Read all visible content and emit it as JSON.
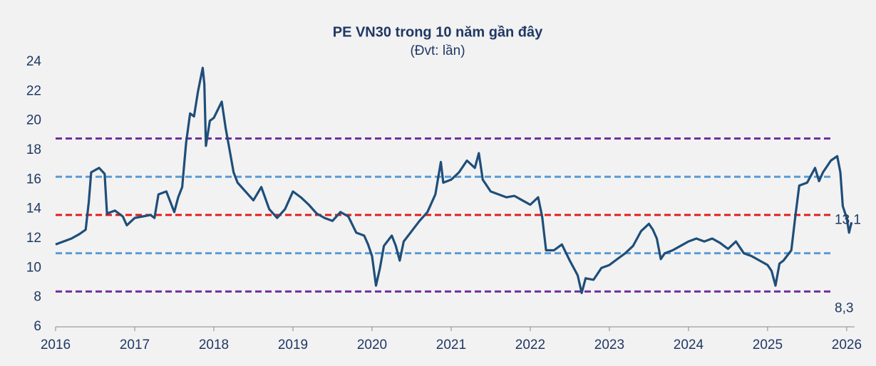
{
  "chart_data": {
    "type": "line",
    "title": "PE VN30 trong 10 năm gần đây",
    "subtitle": "(Đvt: lần)",
    "color": "#1f4e79",
    "x": [
      2016.0,
      2016.1,
      2016.2,
      2016.3,
      2016.38,
      2016.42,
      2016.45,
      2016.55,
      2016.62,
      2016.65,
      2016.75,
      2016.85,
      2016.9,
      2017.0,
      2017.1,
      2017.2,
      2017.25,
      2017.3,
      2017.4,
      2017.5,
      2017.55,
      2017.6,
      2017.65,
      2017.7,
      2017.75,
      2017.8,
      2017.86,
      2017.88,
      2017.9,
      2017.95,
      2018.0,
      2018.1,
      2018.15,
      2018.2,
      2018.25,
      2018.3,
      2018.4,
      2018.5,
      2018.6,
      2018.7,
      2018.8,
      2018.9,
      2019.0,
      2019.1,
      2019.2,
      2019.3,
      2019.4,
      2019.5,
      2019.6,
      2019.7,
      2019.8,
      2019.9,
      2019.95,
      2020.0,
      2020.05,
      2020.1,
      2020.15,
      2020.25,
      2020.3,
      2020.35,
      2020.4,
      2020.5,
      2020.6,
      2020.7,
      2020.8,
      2020.87,
      2020.9,
      2021.0,
      2021.1,
      2021.2,
      2021.3,
      2021.35,
      2021.4,
      2021.5,
      2021.6,
      2021.7,
      2021.8,
      2021.9,
      2022.0,
      2022.1,
      2022.15,
      2022.2,
      2022.3,
      2022.4,
      2022.5,
      2022.6,
      2022.65,
      2022.7,
      2022.8,
      2022.9,
      2023.0,
      2023.1,
      2023.2,
      2023.3,
      2023.4,
      2023.5,
      2023.55,
      2023.6,
      2023.65,
      2023.7,
      2023.8,
      2023.9,
      2024.0,
      2024.1,
      2024.2,
      2024.3,
      2024.4,
      2024.5,
      2024.6,
      2024.7,
      2024.8,
      2024.9,
      2025.0,
      2025.05,
      2025.1,
      2025.15,
      2025.2,
      2025.3,
      2025.35,
      2025.4,
      2025.5,
      2025.6,
      2025.65,
      2025.7,
      2025.8,
      2025.88,
      2025.92,
      2025.95,
      2026.0,
      2026.03,
      2026.06
    ],
    "values": [
      11.6,
      11.8,
      12.0,
      12.3,
      12.6,
      14.5,
      16.5,
      16.8,
      16.4,
      13.7,
      13.9,
      13.5,
      12.9,
      13.4,
      13.5,
      13.6,
      13.4,
      15.0,
      15.2,
      13.8,
      14.8,
      15.5,
      18.5,
      20.5,
      20.3,
      22.0,
      23.6,
      22.5,
      18.3,
      20.0,
      20.2,
      21.3,
      19.5,
      18.0,
      16.5,
      15.8,
      15.2,
      14.6,
      15.5,
      14.0,
      13.4,
      14.0,
      15.2,
      14.8,
      14.3,
      13.7,
      13.4,
      13.2,
      13.8,
      13.5,
      12.4,
      12.2,
      11.6,
      10.8,
      8.8,
      10.0,
      11.5,
      12.2,
      11.5,
      10.5,
      11.8,
      12.5,
      13.2,
      13.8,
      15.0,
      17.2,
      15.8,
      16.0,
      16.5,
      17.3,
      16.8,
      17.8,
      16.0,
      15.2,
      15.0,
      14.8,
      14.9,
      14.6,
      14.3,
      14.8,
      13.5,
      11.2,
      11.2,
      11.6,
      10.5,
      9.5,
      8.3,
      9.3,
      9.2,
      10.0,
      10.2,
      10.6,
      11.0,
      11.5,
      12.5,
      13.0,
      12.6,
      12.0,
      10.6,
      11.0,
      11.2,
      11.5,
      11.8,
      12.0,
      11.8,
      12.0,
      11.7,
      11.3,
      11.8,
      11.0,
      10.8,
      10.5,
      10.2,
      9.8,
      8.8,
      10.3,
      10.5,
      11.2,
      13.5,
      15.6,
      15.8,
      16.8,
      15.9,
      16.5,
      17.3,
      17.6,
      16.5,
      14.2,
      13.4,
      12.4,
      13.1
    ],
    "xlim": [
      2016,
      2026.1
    ],
    "xticks": [
      2016,
      2017,
      2018,
      2019,
      2020,
      2021,
      2022,
      2023,
      2024,
      2025,
      2026
    ],
    "ylim": [
      6,
      24
    ],
    "yticks": [
      6,
      8,
      10,
      12,
      14,
      16,
      18,
      20,
      22,
      24
    ],
    "reference_lines": [
      {
        "value": 18.8,
        "color": "#7030a0"
      },
      {
        "value": 16.2,
        "color": "#5b9bd5"
      },
      {
        "value": 13.6,
        "color": "#e02020"
      },
      {
        "value": 11.0,
        "color": "#5b9bd5"
      },
      {
        "value": 8.4,
        "color": "#7030a0"
      }
    ],
    "annotations": [
      {
        "label": "13,1",
        "value": 13.1
      },
      {
        "label": "8,3",
        "value": 8.3
      }
    ]
  }
}
